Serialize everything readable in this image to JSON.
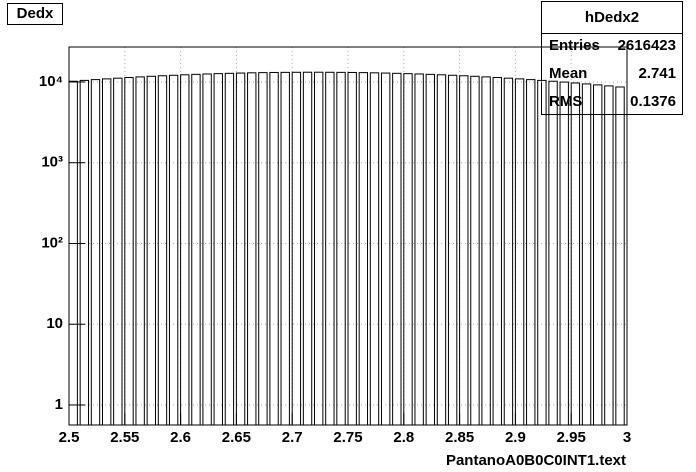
{
  "chart_data": {
    "type": "histogram",
    "title": "Dedx",
    "x_label": "PantanoA0B0C0INT1.text",
    "bins": [
      2.5,
      2.5075,
      2.51,
      2.5175,
      2.52,
      2.5275,
      2.53,
      2.5375,
      2.54,
      2.5475,
      2.55,
      2.5575,
      2.56,
      2.5675,
      2.57,
      2.5775,
      2.58,
      2.5875,
      2.59,
      2.5975,
      2.6,
      2.6075,
      2.61,
      2.6175,
      2.62,
      2.6275,
      2.63,
      2.6375,
      2.64,
      2.6475,
      2.65,
      2.6575,
      2.66,
      2.6675,
      2.67,
      2.6775,
      2.68,
      2.6875,
      2.69,
      2.6975,
      2.7,
      2.7075,
      2.71,
      2.7175,
      2.72,
      2.7275,
      2.73,
      2.7375,
      2.74,
      2.7475,
      2.75,
      2.7575,
      2.76,
      2.7675,
      2.77,
      2.7775,
      2.78,
      2.7875,
      2.79,
      2.7975,
      2.8,
      2.8075,
      2.81,
      2.8175,
      2.82,
      2.8275,
      2.83,
      2.8375,
      2.84,
      2.8475,
      2.85,
      2.8575,
      2.86,
      2.8675,
      2.87,
      2.8775,
      2.88,
      2.8875,
      2.89,
      2.8975,
      2.9,
      2.9075,
      2.91,
      2.9175,
      2.92,
      2.9275,
      2.93,
      2.9375,
      2.94,
      2.9475,
      2.95,
      2.9575,
      2.96,
      2.9675,
      2.97,
      2.9775,
      2.98,
      2.9875,
      2.99,
      2.9975,
      3
    ],
    "values": [
      10210,
      0,
      10460,
      0,
      10690,
      0,
      10920,
      0,
      11140,
      0,
      11350,
      0,
      11550,
      0,
      11750,
      0,
      11930,
      0,
      12100,
      0,
      12270,
      0,
      12420,
      0,
      12560,
      0,
      12680,
      0,
      12790,
      0,
      12890,
      0,
      12980,
      0,
      13050,
      0,
      13110,
      0,
      13150,
      0,
      13180,
      0,
      13200,
      0,
      13200,
      0,
      13180,
      0,
      13150,
      0,
      13110,
      0,
      13050,
      0,
      12980,
      0,
      12890,
      0,
      12790,
      0,
      12680,
      0,
      12560,
      0,
      12420,
      0,
      12270,
      0,
      12100,
      0,
      11930,
      0,
      11750,
      0,
      11550,
      0,
      11350,
      0,
      11140,
      0,
      10920,
      0,
      10690,
      0,
      10460,
      0,
      10210,
      0,
      9970,
      0,
      9710,
      0,
      9460,
      0,
      9200,
      0,
      8940,
      0,
      8670,
      0
    ],
    "color": "#000000",
    "xlim": [
      2.5,
      3
    ],
    "xticks": [
      2.5,
      2.55,
      2.6,
      2.65,
      2.7,
      2.75,
      2.8,
      2.85,
      2.9,
      2.95,
      3
    ],
    "ylim": [
      0.565,
      27100
    ],
    "log_y": true,
    "yticks": [
      1,
      10,
      {
        "value": 100,
        "label": "10²"
      },
      {
        "value": 1000,
        "label": "10³"
      },
      {
        "value": 10000,
        "label": "10⁴"
      }
    ],
    "grid": true,
    "stats": {
      "title": "hDedx2",
      "rows": [
        {
          "label": "Entries",
          "value": "2616423"
        },
        {
          "label": "Mean",
          "value": "2.741"
        },
        {
          "label": "RMS",
          "value": "0.1376"
        }
      ]
    }
  }
}
